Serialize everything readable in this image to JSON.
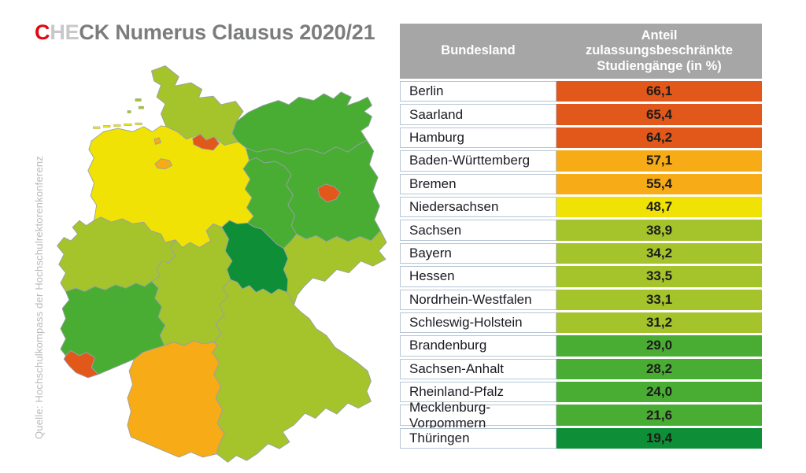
{
  "title": {
    "c": "C",
    "he": "HE",
    "ck": "CK",
    "rest": " Numerus Clausus 2020/21"
  },
  "source_note": "Quelle: Hochschulkompass der Hochschulrektorenkonferenz",
  "colors": {
    "title_red": "#e30613",
    "title_light_gray": "#c7c8ca",
    "title_dark_gray": "#7b7c7e",
    "header_gray": "#a6a6a6",
    "cell_border_blue": "#b6c6d6",
    "levels": {
      "red": "#e2581a",
      "orange": "#f6ab17",
      "yellow": "#f0e204",
      "light_green": "#a5c32b",
      "mid_green": "#4aad33",
      "dark_green": "#0e8e36"
    }
  },
  "table": {
    "header": {
      "col1": "Bundesland",
      "col2": "Anteil zulassungsbeschränkte Studiengänge (in %)"
    },
    "rows": [
      {
        "bundesland": "Berlin",
        "value": "66,1",
        "level": "red"
      },
      {
        "bundesland": "Saarland",
        "value": "65,4",
        "level": "red"
      },
      {
        "bundesland": "Hamburg",
        "value": "64,2",
        "level": "red"
      },
      {
        "bundesland": "Baden-Württemberg",
        "value": "57,1",
        "level": "orange"
      },
      {
        "bundesland": "Bremen",
        "value": "55,4",
        "level": "orange"
      },
      {
        "bundesland": "Niedersachsen",
        "value": "48,7",
        "level": "yellow"
      },
      {
        "bundesland": "Sachsen",
        "value": "38,9",
        "level": "light_green"
      },
      {
        "bundesland": "Bayern",
        "value": "34,2",
        "level": "light_green"
      },
      {
        "bundesland": "Hessen",
        "value": "33,5",
        "level": "light_green"
      },
      {
        "bundesland": "Nordrhein-Westfalen",
        "value": "33,1",
        "level": "light_green"
      },
      {
        "bundesland": "Schleswig-Holstein",
        "value": "31,2",
        "level": "light_green"
      },
      {
        "bundesland": "Brandenburg",
        "value": "29,0",
        "level": "mid_green"
      },
      {
        "bundesland": "Sachsen-Anhalt",
        "value": "28,2",
        "level": "mid_green"
      },
      {
        "bundesland": "Rheinland-Pfalz",
        "value": "24,0",
        "level": "mid_green"
      },
      {
        "bundesland": "Mecklenburg-Vorpommern",
        "value": "21,6",
        "level": "mid_green"
      },
      {
        "bundesland": "Thüringen",
        "value": "19,4",
        "level": "dark_green"
      }
    ]
  },
  "map": {
    "description": "Germany choropleth, states colored by share of restricted-admission degree programmes",
    "state_levels": {
      "SH": "light_green",
      "HH": "red",
      "MV": "mid_green",
      "NI": "yellow",
      "HB": "orange",
      "BB": "mid_green",
      "BE": "red",
      "ST": "mid_green",
      "NW": "light_green",
      "HE": "light_green",
      "TH": "dark_green",
      "SN": "light_green",
      "RP": "mid_green",
      "SL": "red",
      "BW": "orange",
      "BY": "light_green"
    }
  },
  "chart_data": {
    "type": "table",
    "title": "CHECK Numerus Clausus 2020/21",
    "columns": [
      "Bundesland",
      "Anteil zulassungsbeschränkte Studiengänge (in %)"
    ],
    "categories": [
      "Berlin",
      "Saarland",
      "Hamburg",
      "Baden-Württemberg",
      "Bremen",
      "Niedersachsen",
      "Sachsen",
      "Bayern",
      "Hessen",
      "Nordrhein-Westfalen",
      "Schleswig-Holstein",
      "Brandenburg",
      "Sachsen-Anhalt",
      "Rheinland-Pfalz",
      "Mecklenburg-Vorpommern",
      "Thüringen"
    ],
    "values": [
      66.1,
      65.4,
      64.2,
      57.1,
      55.4,
      48.7,
      38.9,
      34.2,
      33.5,
      33.1,
      31.2,
      29.0,
      28.2,
      24.0,
      21.6,
      19.4
    ],
    "value_unit": "%",
    "sort": "descending",
    "legend_position": "none",
    "companion_visual": "choropleth map of German Bundesländer using same color scale (red high → dark green low)",
    "source": "Quelle: Hochschulkompass der Hochschulrektorenkonferenz"
  }
}
